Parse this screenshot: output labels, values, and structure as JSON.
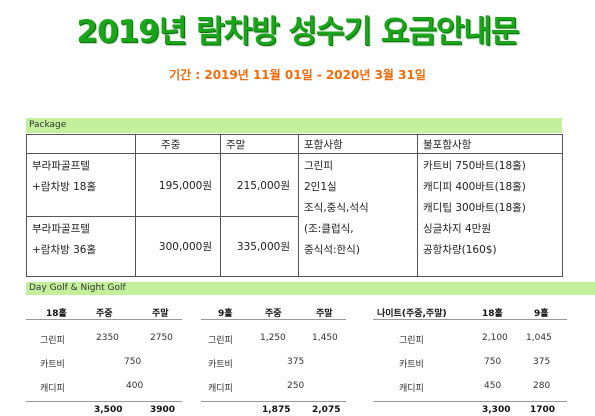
{
  "title": "2019년 람차방 성수기 요금안내문",
  "period": "기간 : 2019년 11월 01일 - 2020년 3월 31일",
  "package": {
    "band_label": "Package",
    "headers": [
      "",
      "주중",
      "주말",
      "포함사항",
      "불포함사항"
    ],
    "rows": [
      {
        "name": [
          "부라파골프텔",
          "+람차방 18홀"
        ],
        "weekday": "195,000원",
        "weekend": "215,000원"
      },
      {
        "name": [
          "부라파골프텔",
          "+람차방 36홀"
        ],
        "weekday": "300,000원",
        "weekend": "335,000원"
      }
    ],
    "included": [
      "그린피",
      "2인1실",
      "조식,중식,석식",
      "(조:클럽식,",
      "중식석:한식)"
    ],
    "excluded": [
      "카트비 750바트(18홀)",
      "캐디피 400바트(18홀)",
      "캐디팁 300바트(18홀)",
      "싱글차지 4만원",
      "공항차량(160$)"
    ]
  },
  "day_night": {
    "band_label": "Day Golf & Night Golf",
    "day18": {
      "headers": [
        "18홀",
        "주중",
        "주말"
      ],
      "rows": [
        {
          "label": "그린피",
          "weekday": "2350",
          "weekend": "2750"
        },
        {
          "label": "카트비",
          "both": "750"
        },
        {
          "label": "캐디피",
          "both": "400"
        }
      ],
      "total": {
        "weekday": "3,500",
        "weekend": "3900"
      }
    },
    "day9": {
      "headers": [
        "9홀",
        "주중",
        "주말"
      ],
      "rows": [
        {
          "label": "그린피",
          "weekday": "1,250",
          "weekend": "1,450"
        },
        {
          "label": "카트비",
          "both": "375"
        },
        {
          "label": "캐디피",
          "both": "250"
        }
      ],
      "total": {
        "weekday": "1,875",
        "weekend": "2,075"
      }
    },
    "night": {
      "headers": [
        "나이트(주중,주말)",
        "18홀",
        "9홀"
      ],
      "rows": [
        {
          "label": "그린피",
          "h18": "2,100",
          "h9": "1,045"
        },
        {
          "label": "카트비",
          "h18": "750",
          "h9": "375"
        },
        {
          "label": "캐디피",
          "h18": "450",
          "h9": "280"
        }
      ],
      "total": {
        "h18": "3,300",
        "h9": "1700"
      }
    }
  }
}
